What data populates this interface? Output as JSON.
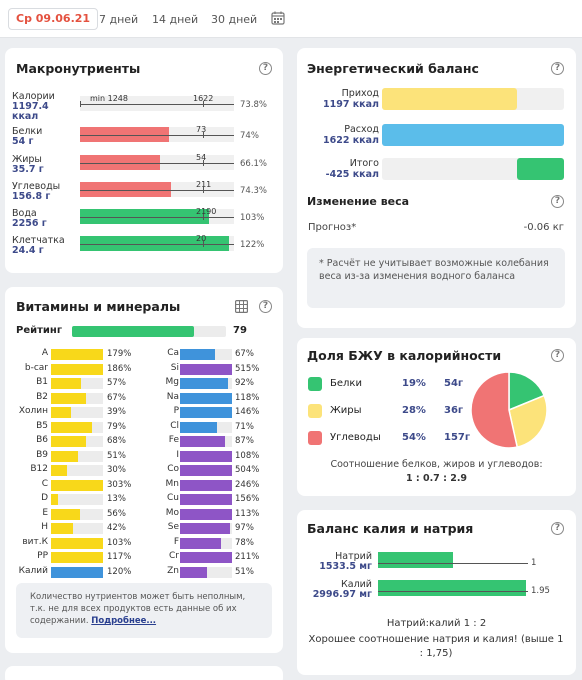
{
  "topbar": {
    "date": "Ср 09.06.21",
    "ranges": [
      "7 дней",
      "14 дней",
      "30 дней"
    ],
    "calendar_icon": "calendar-icon"
  },
  "macro": {
    "title": "Макронутриенты",
    "help": "?",
    "rows": [
      {
        "label": "Калории",
        "value": "1197.4",
        "value2": "ккал",
        "fill_pct": 0,
        "color": "#f1f1f1",
        "marks": [
          "min 1248",
          "1622"
        ],
        "pct": "73.8%"
      },
      {
        "label": "Белки",
        "value": "54 г",
        "fill_pct": 0.58,
        "color": "#f07474",
        "marks": [
          "73"
        ],
        "pct": "74%"
      },
      {
        "label": "Жиры",
        "value": "35.7 г",
        "fill_pct": 0.52,
        "color": "#f07474",
        "marks": [
          "54"
        ],
        "pct": "66.1%"
      },
      {
        "label": "Углеводы",
        "value": "156.8 г",
        "fill_pct": 0.59,
        "color": "#f07474",
        "marks": [
          "211"
        ],
        "pct": "74.3%"
      },
      {
        "label": "Вода",
        "value": "2256 г",
        "fill_pct": 0.84,
        "color": "#35c472",
        "marks": [
          "2190"
        ],
        "pct": "103%"
      },
      {
        "label": "Клетчатка",
        "value": "24.4 г",
        "fill_pct": 0.97,
        "color": "#35c472",
        "marks": [
          "20"
        ],
        "pct": "122%"
      }
    ]
  },
  "energy": {
    "title": "Энергетический баланс",
    "help": "?",
    "rows": [
      {
        "label": "Приход",
        "value": "1197 ккал",
        "fill_pct": 0.74,
        "color": "#fce37a",
        "start": 0
      },
      {
        "label": "Расход",
        "value": "1622 ккал",
        "fill_pct": 1.0,
        "color": "#5bbdea",
        "start": 0
      },
      {
        "label": "Итого",
        "value": "-425 ккал",
        "fill_pct": 0.26,
        "color": "#35c472",
        "start": 0.74
      }
    ],
    "weight_title": "Изменение веса",
    "forecast_label": "Прогноз*",
    "forecast_value": "-0.06 кг",
    "note": "* Расчёт не учитывает возможные колебания веса из-за изменения водного баланса"
  },
  "vitamins": {
    "title": "Витамины и минералы",
    "table_icon": "table-icon",
    "help": "?",
    "rating_label": "Рейтинг",
    "rating_value": "79",
    "rating_fill": 0.79,
    "left": [
      {
        "name": "A",
        "pct": "179%",
        "fill": 1.0,
        "color": "#f8d81a"
      },
      {
        "name": "b-car",
        "pct": "186%",
        "fill": 1.0,
        "color": "#f8d81a"
      },
      {
        "name": "B1",
        "pct": "57%",
        "fill": 0.57,
        "color": "#f8d81a"
      },
      {
        "name": "B2",
        "pct": "67%",
        "fill": 0.67,
        "color": "#f8d81a"
      },
      {
        "name": "Холин",
        "pct": "39%",
        "fill": 0.39,
        "color": "#f8d81a"
      },
      {
        "name": "B5",
        "pct": "79%",
        "fill": 0.79,
        "color": "#f8d81a"
      },
      {
        "name": "B6",
        "pct": "68%",
        "fill": 0.68,
        "color": "#f8d81a"
      },
      {
        "name": "B9",
        "pct": "51%",
        "fill": 0.51,
        "color": "#f8d81a"
      },
      {
        "name": "B12",
        "pct": "30%",
        "fill": 0.3,
        "color": "#f8d81a"
      },
      {
        "name": "C",
        "pct": "303%",
        "fill": 1.0,
        "color": "#f8d81a"
      },
      {
        "name": "D",
        "pct": "13%",
        "fill": 0.13,
        "color": "#f8d81a"
      },
      {
        "name": "E",
        "pct": "56%",
        "fill": 0.56,
        "color": "#f8d81a"
      },
      {
        "name": "H",
        "pct": "42%",
        "fill": 0.42,
        "color": "#f8d81a"
      },
      {
        "name": "вит.К",
        "pct": "103%",
        "fill": 1.0,
        "color": "#f8d81a"
      },
      {
        "name": "PP",
        "pct": "117%",
        "fill": 1.0,
        "color": "#f8d81a"
      },
      {
        "name": "Калий",
        "pct": "120%",
        "fill": 1.0,
        "color": "#3f93db"
      }
    ],
    "right": [
      {
        "name": "Ca",
        "pct": "67%",
        "fill": 0.67,
        "color": "#3f93db"
      },
      {
        "name": "Si",
        "pct": "515%",
        "fill": 1.0,
        "color": "#8e55c6"
      },
      {
        "name": "Mg",
        "pct": "92%",
        "fill": 0.92,
        "color": "#3f93db"
      },
      {
        "name": "Na",
        "pct": "118%",
        "fill": 1.0,
        "color": "#3f93db"
      },
      {
        "name": "P",
        "pct": "146%",
        "fill": 1.0,
        "color": "#3f93db"
      },
      {
        "name": "Cl",
        "pct": "71%",
        "fill": 0.71,
        "color": "#3f93db"
      },
      {
        "name": "Fe",
        "pct": "87%",
        "fill": 0.87,
        "color": "#8e55c6"
      },
      {
        "name": "I",
        "pct": "108%",
        "fill": 1.0,
        "color": "#8e55c6"
      },
      {
        "name": "Co",
        "pct": "504%",
        "fill": 1.0,
        "color": "#8e55c6"
      },
      {
        "name": "Mn",
        "pct": "246%",
        "fill": 1.0,
        "color": "#8e55c6"
      },
      {
        "name": "Cu",
        "pct": "156%",
        "fill": 1.0,
        "color": "#8e55c6"
      },
      {
        "name": "Mo",
        "pct": "113%",
        "fill": 1.0,
        "color": "#8e55c6"
      },
      {
        "name": "Se",
        "pct": "97%",
        "fill": 0.97,
        "color": "#8e55c6"
      },
      {
        "name": "F",
        "pct": "78%",
        "fill": 0.78,
        "color": "#8e55c6"
      },
      {
        "name": "Cr",
        "pct": "211%",
        "fill": 1.0,
        "color": "#8e55c6"
      },
      {
        "name": "Zn",
        "pct": "51%",
        "fill": 0.51,
        "color": "#8e55c6"
      }
    ],
    "note": "Количество нутриентов может быть неполным, т.к. не для всех продуктов есть данные об их содержании.",
    "note_link": "Подробнее..."
  },
  "bju": {
    "title": "Доля БЖУ в калорийности",
    "help": "?",
    "rows": [
      {
        "name": "Белки",
        "pct": "19%",
        "grams": "54г",
        "color": "#35c472",
        "share": 0.19
      },
      {
        "name": "Жиры",
        "pct": "28%",
        "grams": "36г",
        "color": "#fce37a",
        "share": 0.28
      },
      {
        "name": "Углеводы",
        "pct": "54%",
        "grams": "157г",
        "color": "#f07474",
        "share": 0.54
      }
    ],
    "ratio_label": "Соотношение белков, жиров и углеводов:",
    "ratio_value": "1 : 0.7 : 2.9"
  },
  "kna": {
    "title": "Баланс калия и натрия",
    "help": "?",
    "rows": [
      {
        "name": "Натрий",
        "value": "1533.5 мг",
        "fill": 0.51,
        "num": "1"
      },
      {
        "name": "Калий",
        "value": "2996.97 мг",
        "fill": 1.0,
        "num": "1.95"
      }
    ],
    "ratio": "Натрий:калий 1 : 2",
    "comment": "Хорошее соотношение натрия и калия! (выше 1 : 1,75)"
  }
}
